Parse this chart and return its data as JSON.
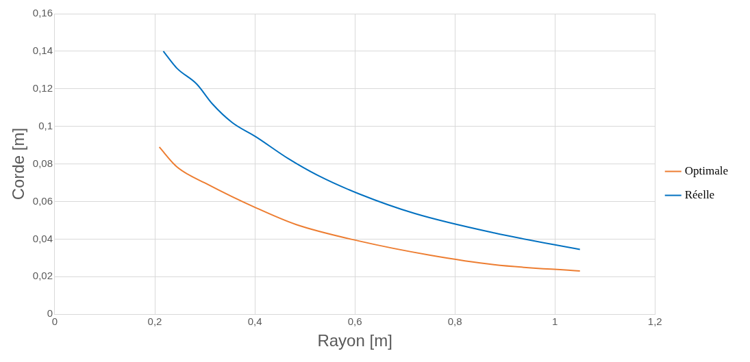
{
  "chart_data": {
    "type": "line",
    "xlabel": "Rayon [m]",
    "ylabel": "Corde [m]",
    "xlim": [
      0,
      1.2
    ],
    "xticks": [
      0,
      {
        "value": 0.2,
        "label": "0,2"
      },
      {
        "value": 0.4,
        "label": "0,4"
      },
      {
        "value": 0.6,
        "label": "0,6"
      },
      {
        "value": 0.8,
        "label": "0,8"
      },
      1,
      {
        "value": 1.2,
        "label": "1,2"
      }
    ],
    "ylim": [
      0,
      0.16
    ],
    "yticks": [
      0,
      {
        "value": 0.02,
        "label": "0,02"
      },
      {
        "value": 0.04,
        "label": "0,04"
      },
      {
        "value": 0.06,
        "label": "0,06"
      },
      {
        "value": 0.08,
        "label": "0,08"
      },
      {
        "value": 0.1,
        "label": "0,1"
      },
      {
        "value": 0.12,
        "label": "0,12"
      },
      {
        "value": 0.14,
        "label": "0,14"
      },
      {
        "value": 0.16,
        "label": "0,16"
      }
    ],
    "grid": true,
    "legend": "right",
    "marker": "none",
    "line_style": "solid",
    "series": [
      {
        "name": "Optimale",
        "color": "#ed7d31",
        "x": [
          0.209,
          0.244,
          0.307,
          0.402,
          0.482,
          0.608,
          0.751,
          0.878,
          1.05
        ],
        "values": [
          0.089,
          0.0785,
          0.069,
          0.0567,
          0.0478,
          0.039,
          0.0314,
          0.0264,
          0.023
        ]
      },
      {
        "name": "Réelle",
        "color": "#0070c0",
        "x": [
          0.217,
          0.244,
          0.284,
          0.315,
          0.355,
          0.402,
          0.466,
          0.529,
          0.609,
          0.72,
          0.878,
          1.05
        ],
        "values": [
          0.14,
          0.131,
          0.1225,
          0.112,
          0.102,
          0.0945,
          0.083,
          0.0735,
          0.064,
          0.0536,
          0.0433,
          0.0345
        ]
      }
    ]
  }
}
